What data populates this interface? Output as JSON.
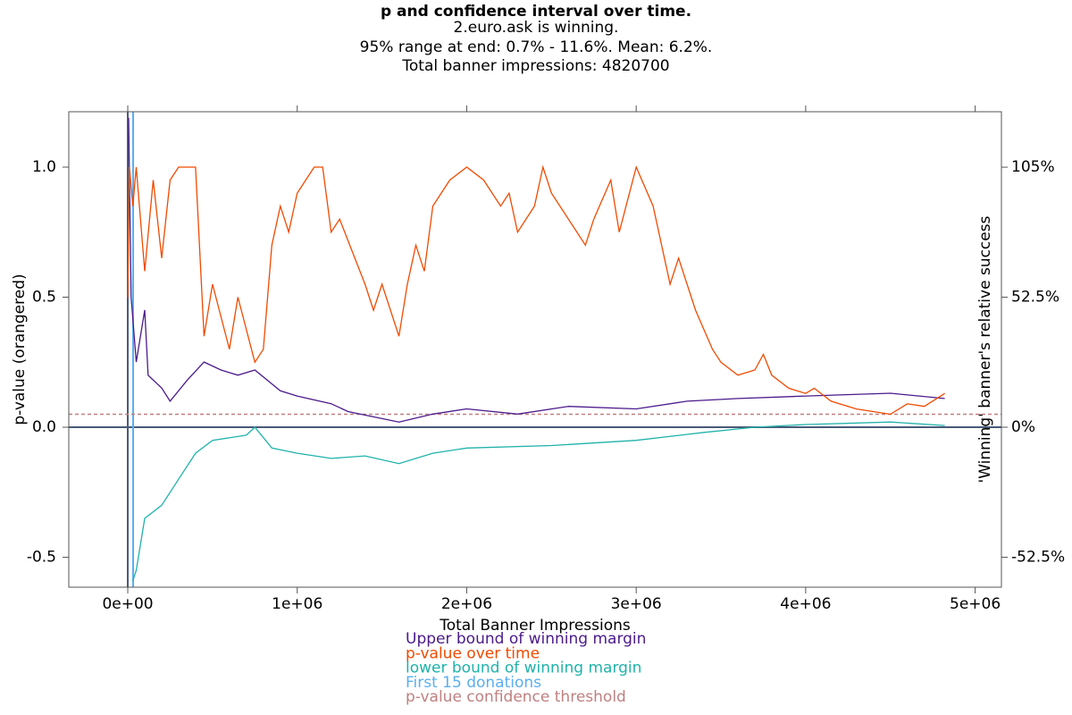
{
  "chart_data": {
    "type": "line",
    "title": "p and confidence interval over time.",
    "subtitles": [
      "2.euro.ask is winning.",
      "95% range at end: 0.7% - 11.6%. Mean: 6.2%.",
      "Total banner impressions: 4820700"
    ],
    "x_label": "Total Banner Impressions",
    "y_label": "p-value (orangered)",
    "y2_label": "'Winning' banner's relative success",
    "xlim": [
      -348000,
      5155000
    ],
    "ylim": [
      -0.615,
      1.213
    ],
    "y2lim": [
      -64.6,
      127.4
    ],
    "xticks": [
      {
        "value": 0,
        "label": "0e+00"
      },
      {
        "value": 1000000,
        "label": "1e+06"
      },
      {
        "value": 2000000,
        "label": "2e+06"
      },
      {
        "value": 3000000,
        "label": "3e+06"
      },
      {
        "value": 4000000,
        "label": "4e+06"
      },
      {
        "value": 5000000,
        "label": "5e+06"
      }
    ],
    "yticks": [
      -0.5,
      {
        "value": 0,
        "label": "0.0"
      },
      0.5,
      {
        "value": 1,
        "label": "1.0"
      }
    ],
    "y2ticks": [
      {
        "value": -52.5,
        "label": "-52.5%"
      },
      {
        "value": 0,
        "label": "0%"
      },
      {
        "value": 52.5,
        "label": "52.5%"
      },
      {
        "value": 105,
        "label": "105%"
      }
    ],
    "series": [
      {
        "name": "Upper bound of winning margin",
        "color": "#4b1a8c",
        "axis": "y2",
        "x": [
          5000,
          20000,
          50000,
          100000,
          120000,
          200000,
          250000,
          350000,
          450000,
          550000,
          650000,
          750000,
          900000,
          1000000,
          1200000,
          1300000,
          1450000,
          1600000,
          1800000,
          2000000,
          2300000,
          2600000,
          3000000,
          3300000,
          3600000,
          4000000,
          4500000,
          4820700
        ],
        "values": [
          125,
          52.5,
          26.3,
          47.3,
          21,
          15.8,
          10.5,
          18.9,
          26.3,
          23.1,
          21,
          23.1,
          14.7,
          12.6,
          9.5,
          6.3,
          4.2,
          2.1,
          5.3,
          7.4,
          5.3,
          8.4,
          7.4,
          10.5,
          11.6,
          12.6,
          13.7,
          11.6
        ]
      },
      {
        "name": "p-value over time",
        "color": "#f04a00",
        "axis": "y",
        "x": [
          0,
          10000,
          30000,
          50000,
          100000,
          150000,
          200000,
          250000,
          300000,
          400000,
          450000,
          500000,
          600000,
          650000,
          750000,
          800000,
          850000,
          900000,
          950000,
          1000000,
          1100000,
          1150000,
          1200000,
          1250000,
          1400000,
          1450000,
          1500000,
          1600000,
          1650000,
          1700000,
          1750000,
          1800000,
          1900000,
          2000000,
          2100000,
          2200000,
          2250000,
          2300000,
          2400000,
          2450000,
          2500000,
          2600000,
          2700000,
          2750000,
          2850000,
          2900000,
          3000000,
          3100000,
          3200000,
          3250000,
          3350000,
          3450000,
          3500000,
          3600000,
          3700000,
          3750000,
          3800000,
          3900000,
          4000000,
          4050000,
          4150000,
          4300000,
          4500000,
          4600000,
          4700000,
          4820700
        ],
        "values": [
          0.5,
          1.0,
          0.85,
          1.0,
          0.6,
          0.95,
          0.65,
          0.95,
          1.0,
          1.0,
          0.35,
          0.55,
          0.3,
          0.5,
          0.25,
          0.3,
          0.7,
          0.85,
          0.75,
          0.9,
          1.0,
          1.0,
          0.75,
          0.8,
          0.55,
          0.45,
          0.55,
          0.35,
          0.55,
          0.7,
          0.6,
          0.85,
          0.95,
          1.0,
          0.95,
          0.85,
          0.9,
          0.75,
          0.85,
          1.0,
          0.9,
          0.8,
          0.7,
          0.8,
          0.95,
          0.75,
          1.0,
          0.85,
          0.55,
          0.65,
          0.45,
          0.3,
          0.25,
          0.2,
          0.22,
          0.28,
          0.2,
          0.15,
          0.13,
          0.15,
          0.1,
          0.07,
          0.05,
          0.09,
          0.08,
          0.13
        ]
      },
      {
        "name": "lower bound of winning margin",
        "color": "#20b2aa",
        "axis": "y2",
        "x": [
          30000,
          50000,
          100000,
          200000,
          300000,
          400000,
          500000,
          700000,
          750000,
          850000,
          1000000,
          1200000,
          1400000,
          1600000,
          1800000,
          2000000,
          2500000,
          3000000,
          3400000,
          3700000,
          4000000,
          4500000,
          4820700
        ],
        "values": [
          -62,
          -57.8,
          -36.8,
          -31.5,
          -21,
          -10.5,
          -5.3,
          -3.2,
          0,
          -8.4,
          -10.5,
          -12.6,
          -11.6,
          -14.7,
          -10.5,
          -8.4,
          -7.4,
          -5.3,
          -2.1,
          0,
          1.1,
          2.1,
          0.7
        ]
      }
    ],
    "reference_lines": [
      {
        "name": "First 15 donations",
        "color": "#5aaff0",
        "x": 31600
      },
      {
        "name": "p-value confidence threshold",
        "color": "#c08080",
        "y": 0.05,
        "dashed": true
      }
    ],
    "zero_line_color": "#4a5a78"
  }
}
